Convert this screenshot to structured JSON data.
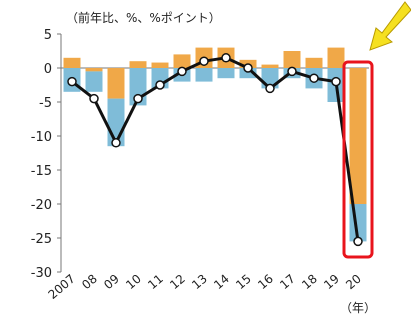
{
  "chart_data": {
    "type": "bar",
    "unit_label": "（前年比、%、%ポイント）",
    "year_unit": "（年）",
    "categories": [
      "2007",
      "08",
      "09",
      "10",
      "11",
      "12",
      "13",
      "14",
      "15",
      "16",
      "17",
      "18",
      "19",
      "20"
    ],
    "ylim": [
      -30,
      5
    ],
    "yticks": [
      5,
      0,
      -5,
      -10,
      -15,
      -20,
      -25,
      -30
    ],
    "stacked": true,
    "grid": false,
    "series": [
      {
        "kind": "bar",
        "color": "#f0a848",
        "values": [
          1.5,
          -0.5,
          -4.5,
          1.0,
          0.8,
          2.0,
          3.0,
          3.0,
          1.2,
          0.5,
          2.5,
          1.5,
          3.0,
          -20.0
        ]
      },
      {
        "kind": "bar",
        "color": "#7fbcd8",
        "values": [
          -3.5,
          -3.0,
          -7.0,
          -5.5,
          -3.0,
          -2.0,
          -2.0,
          -1.5,
          -1.5,
          -3.0,
          -1.5,
          -3.0,
          -5.0,
          -5.5
        ]
      },
      {
        "kind": "line",
        "color": "#111111",
        "values": [
          -2.0,
          -4.5,
          -11.0,
          -4.5,
          -2.5,
          -0.5,
          1.0,
          1.5,
          0.0,
          -3.0,
          -0.5,
          -1.5,
          -2.0,
          -25.5
        ]
      }
    ],
    "highlight": {
      "category": "20",
      "box_color": "#e8141c",
      "arrow_color": "#f5e020"
    }
  }
}
